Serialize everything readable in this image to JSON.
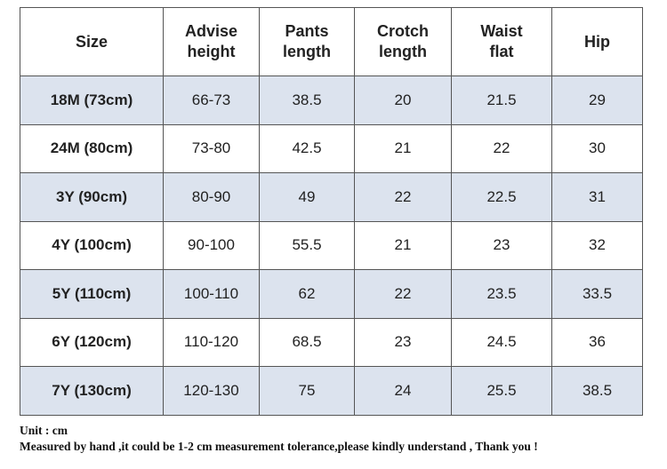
{
  "table": {
    "header": [
      "Size",
      "Advise height",
      "Pants length",
      "Crotch length",
      "Waist flat",
      "Hip"
    ],
    "rows": [
      [
        "18M (73cm)",
        "66-73",
        "38.5",
        "20",
        "21.5",
        "29"
      ],
      [
        "24M (80cm)",
        "73-80",
        "42.5",
        "21",
        "22",
        "30"
      ],
      [
        "3Y (90cm)",
        "80-90",
        "49",
        "22",
        "22.5",
        "31"
      ],
      [
        "4Y (100cm)",
        "90-100",
        "55.5",
        "21",
        "23",
        "32"
      ],
      [
        "5Y (110cm)",
        "100-110",
        "62",
        "22",
        "23.5",
        "33.5"
      ],
      [
        "6Y (120cm)",
        "110-120",
        "68.5",
        "23",
        "24.5",
        "36"
      ],
      [
        "7Y (130cm)",
        "120-130",
        "75",
        "24",
        "25.5",
        "38.5"
      ]
    ]
  },
  "footer": {
    "unit": "Unit : cm",
    "note": "Measured by hand ,it could be 1-2 cm measurement tolerance,please kindly understand , Thank you !"
  }
}
